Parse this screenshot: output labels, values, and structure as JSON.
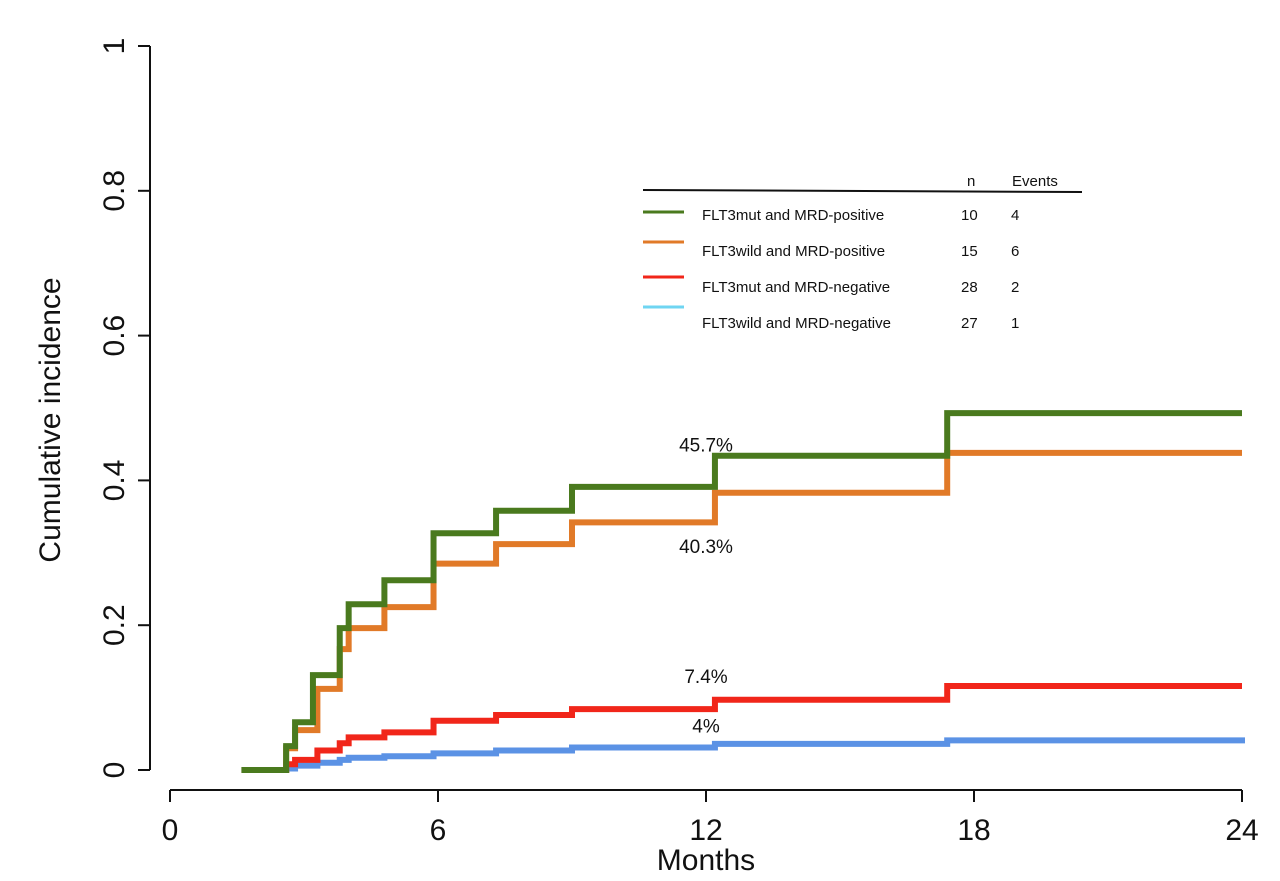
{
  "chart_data": {
    "type": "line",
    "step": true,
    "xlabel": "Months",
    "ylabel": "Cumulative incidence",
    "xlim": [
      0,
      24
    ],
    "ylim": [
      0,
      1
    ],
    "xticks": [
      0,
      6,
      12,
      18,
      24
    ],
    "xtick_labels": [
      "0",
      "6",
      "12",
      "18",
      "24"
    ],
    "yticks": [
      0,
      0.2,
      0.4,
      0.6,
      0.8,
      1
    ],
    "ytick_labels": [
      "0",
      "0.2",
      "0.4",
      "0.6",
      "0.8",
      "1"
    ],
    "legend": {
      "position": "upper-right",
      "header_n": "n",
      "header_events": "Events"
    },
    "series": [
      {
        "name": "FLT3mut and MRD-positive",
        "n": "10",
        "events": "4",
        "color": "#4a7a1e",
        "x": [
          1.6,
          2.6,
          2.8,
          3.2,
          3.8,
          4.0,
          4.8,
          5.9,
          7.3,
          9.0,
          12.2,
          17.4,
          24
        ],
        "y": [
          0,
          0.033,
          0.066,
          0.131,
          0.196,
          0.229,
          0.262,
          0.327,
          0.358,
          0.391,
          0.434,
          0.493,
          0.493
        ]
      },
      {
        "name": "FLT3wild and MRD-positive",
        "n": "15",
        "events": "6",
        "color": "#e17a28",
        "x": [
          1.6,
          2.6,
          2.8,
          3.3,
          3.8,
          4.0,
          4.8,
          5.9,
          7.3,
          9.0,
          12.2,
          17.4,
          24
        ],
        "y": [
          0,
          0.03,
          0.055,
          0.112,
          0.167,
          0.196,
          0.225,
          0.285,
          0.312,
          0.342,
          0.383,
          0.438,
          0.438
        ]
      },
      {
        "name": "FLT3mut and MRD-negative",
        "n": "28",
        "events": "2",
        "color": "#f1261a",
        "x": [
          1.6,
          2.6,
          2.8,
          3.3,
          3.8,
          4.0,
          4.8,
          5.9,
          7.3,
          9.0,
          12.2,
          17.4,
          24
        ],
        "y": [
          0,
          0.008,
          0.014,
          0.027,
          0.037,
          0.045,
          0.052,
          0.068,
          0.076,
          0.084,
          0.097,
          0.116,
          0.116
        ]
      },
      {
        "name": "FLT3wild and MRD-negative",
        "n": "27",
        "events": "1",
        "color": "#5b92e5",
        "legend_color": "#6fd5f2",
        "x": [
          1.6,
          2.6,
          2.8,
          3.3,
          3.8,
          4.0,
          4.8,
          5.9,
          7.3,
          9.0,
          12.2,
          17.4,
          24
        ],
        "y": [
          0,
          0.002,
          0.006,
          0.01,
          0.014,
          0.017,
          0.019,
          0.023,
          0.027,
          0.031,
          0.036,
          0.041,
          0.045
        ]
      }
    ],
    "annotations": [
      {
        "text": "45.7%",
        "x": 12.0,
        "y": 0.44
      },
      {
        "text": "40.3%",
        "x": 12.0,
        "y": 0.3
      },
      {
        "text": "7.4%",
        "x": 12.0,
        "y": 0.12
      },
      {
        "text": "4%",
        "x": 12.0,
        "y": 0.052
      }
    ]
  }
}
